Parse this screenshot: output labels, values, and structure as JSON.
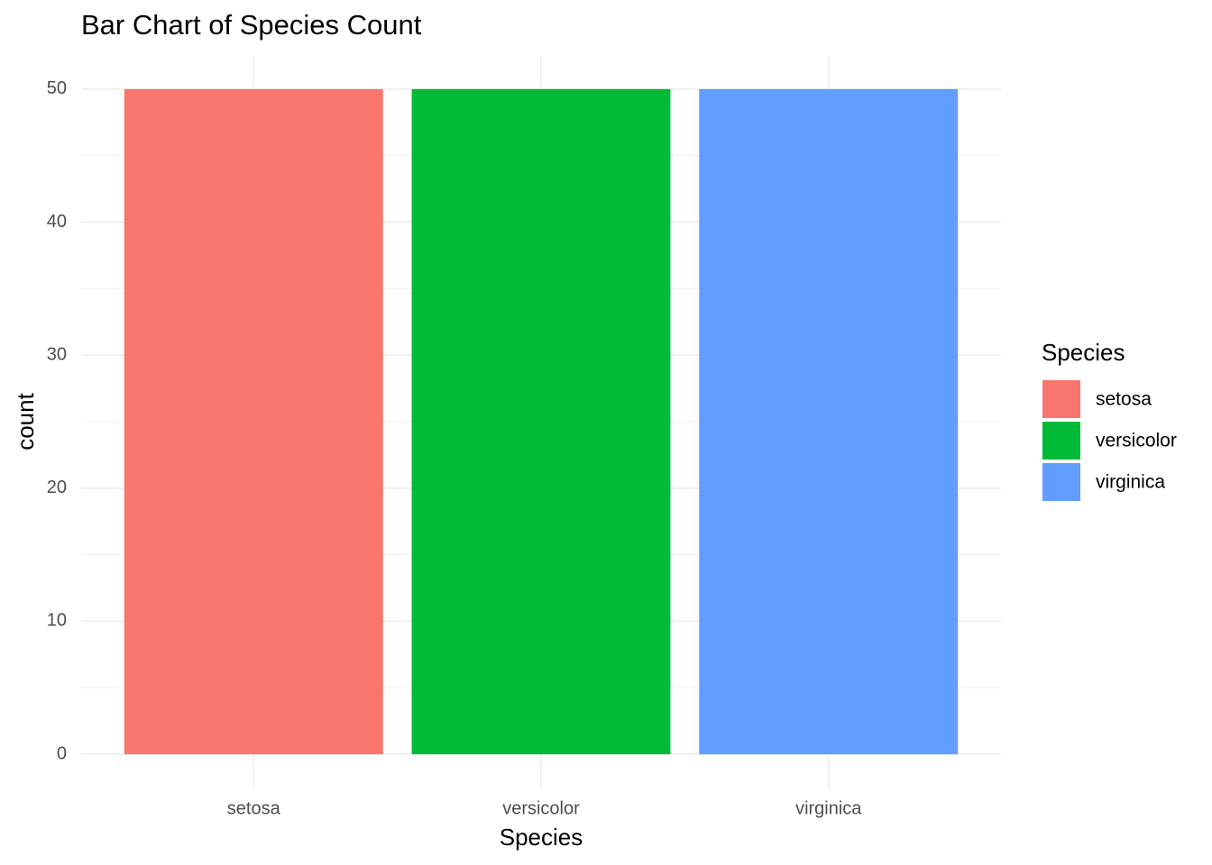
{
  "chart_data": {
    "type": "bar",
    "title": "Bar Chart of Species Count",
    "x_label": "Species",
    "y_label": "count",
    "categories": [
      "setosa",
      "versicolor",
      "virginica"
    ],
    "values": [
      50,
      50,
      50
    ],
    "colors": [
      "#f8766d",
      "#00ba38",
      "#619cff"
    ],
    "ylim": [
      -2.5,
      52.5
    ],
    "yticks": [
      0,
      10,
      20,
      30,
      40,
      50
    ],
    "yminorticks": [
      5,
      15,
      25,
      35,
      45
    ],
    "grid": true,
    "legend_title": "Species",
    "legend_position": "right"
  }
}
